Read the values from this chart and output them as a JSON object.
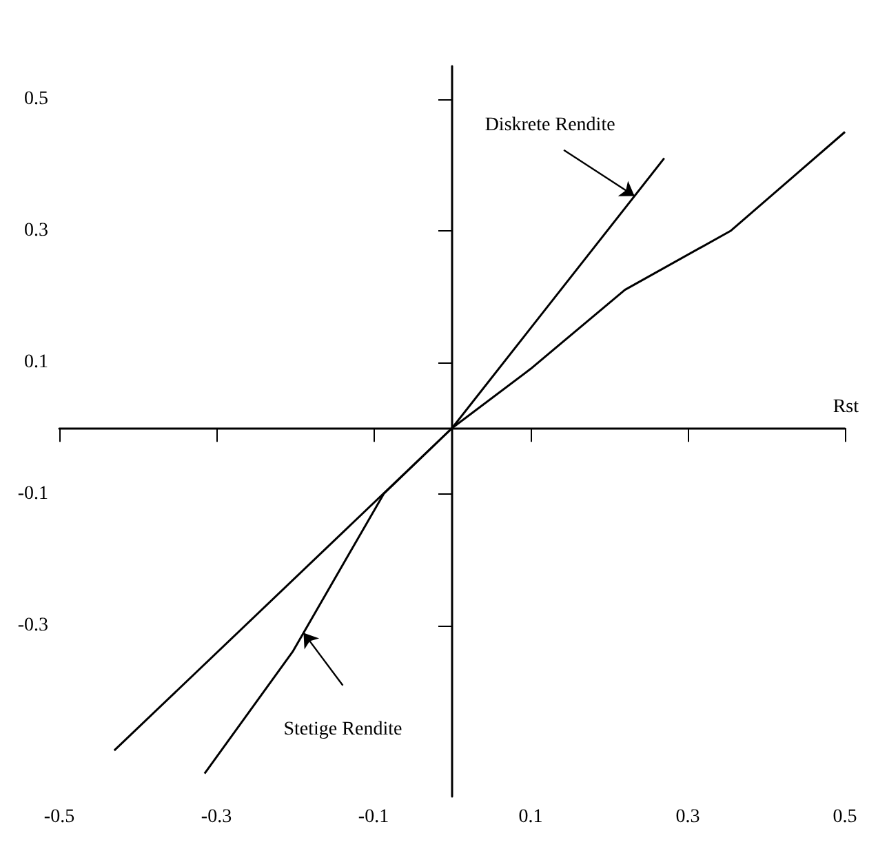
{
  "chart_data": {
    "type": "line",
    "xlabel": "Rst",
    "series": [
      {
        "name": "Diskrete Rendite",
        "color": "#000000",
        "x": [
          -0.43,
          0,
          0.27
        ],
        "values": [
          -0.49,
          0,
          0.41
        ]
      },
      {
        "name": "Stetige Rendite",
        "color": "#000000",
        "x": [
          -0.315,
          -0.203,
          -0.087,
          0,
          0.1,
          0.22,
          0.355,
          0.5
        ],
        "values": [
          -0.525,
          -0.34,
          -0.1,
          0,
          0.09,
          0.21,
          0.3,
          0.45
        ]
      }
    ],
    "xlim": [
      -0.5,
      0.5
    ],
    "ylim": [
      -0.56,
      0.55
    ],
    "xticks": [
      -0.5,
      -0.3,
      -0.1,
      0.1,
      0.3,
      0.5
    ],
    "yticks": [
      -0.3,
      -0.1,
      0.1,
      0.3,
      0.5
    ],
    "grid": false,
    "marker": "none",
    "line_style": "solid"
  }
}
